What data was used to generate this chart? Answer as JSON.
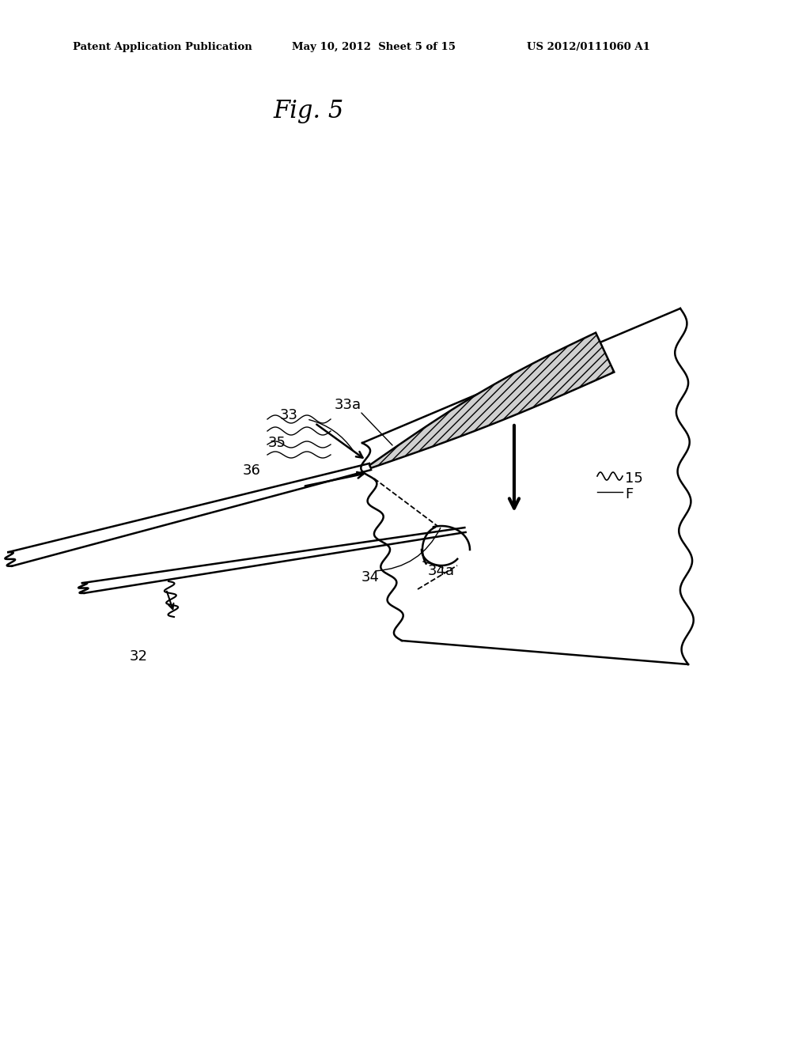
{
  "background_color": "#ffffff",
  "header_left": "Patent Application Publication",
  "header_mid": "May 10, 2012  Sheet 5 of 15",
  "header_right": "US 2012/0111060 A1",
  "fig_title": "Fig. 5",
  "line_color": "#000000"
}
